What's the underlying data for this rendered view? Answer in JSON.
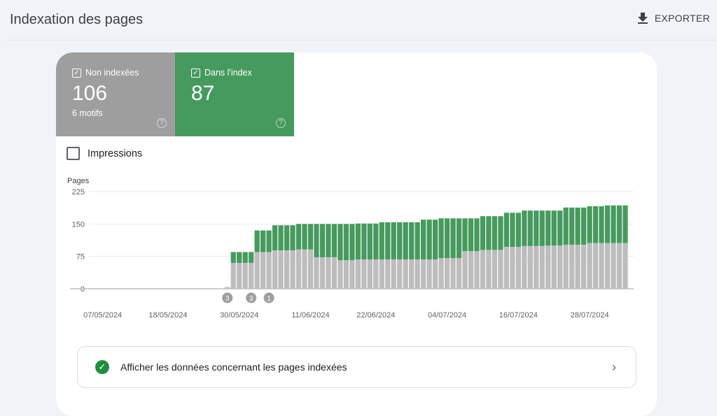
{
  "header": {
    "title": "Indexation des pages",
    "export_label": "EXPORTER",
    "export_icon": "download-icon"
  },
  "tiles": [
    {
      "label": "Non indexées",
      "value": "106",
      "sub": "6 motifs",
      "checked": true,
      "color": "#9e9e9e"
    },
    {
      "label": "Dans l'index",
      "value": "87",
      "checked": true,
      "color": "#469a5e"
    }
  ],
  "impressions": {
    "label": "Impressions",
    "checked": false
  },
  "chart_data": {
    "type": "bar",
    "stacked": true,
    "ylabel": "Pages",
    "ylim": [
      0,
      225
    ],
    "yticks": [
      "0",
      "75",
      "150",
      "225"
    ],
    "xlim": [
      "02/05/2024",
      "03/08/2024"
    ],
    "xticks": [
      "07/05/2024",
      "18/05/2024",
      "30/05/2024",
      "11/06/2024",
      "22/06/2024",
      "04/07/2024",
      "16/07/2024",
      "28/07/2024"
    ],
    "grid": true,
    "note": "",
    "x": [
      "28/05/2024",
      "29/05/2024",
      "30/05/2024",
      "31/05/2024",
      "01/06/2024",
      "02/06/2024",
      "03/06/2024",
      "04/06/2024",
      "05/06/2024",
      "06/06/2024",
      "07/06/2024",
      "08/06/2024",
      "09/06/2024",
      "10/06/2024",
      "11/06/2024",
      "12/06/2024",
      "13/06/2024",
      "14/06/2024",
      "15/06/2024",
      "16/06/2024",
      "17/06/2024",
      "18/06/2024",
      "19/06/2024",
      "20/06/2024",
      "21/06/2024",
      "22/06/2024",
      "23/06/2024",
      "24/06/2024",
      "25/06/2024",
      "26/06/2024",
      "27/06/2024",
      "28/06/2024",
      "29/06/2024",
      "30/06/2024",
      "01/07/2024",
      "02/07/2024",
      "03/07/2024",
      "04/07/2024",
      "05/07/2024",
      "06/07/2024",
      "07/07/2024",
      "08/07/2024",
      "09/07/2024",
      "10/07/2024",
      "11/07/2024",
      "12/07/2024",
      "13/07/2024",
      "14/07/2024",
      "15/07/2024",
      "16/07/2024",
      "17/07/2024",
      "18/07/2024",
      "19/07/2024",
      "20/07/2024",
      "21/07/2024",
      "22/07/2024",
      "23/07/2024",
      "24/07/2024",
      "25/07/2024",
      "26/07/2024",
      "27/07/2024",
      "28/07/2024",
      "29/07/2024",
      "30/07/2024",
      "31/07/2024",
      "01/08/2024",
      "02/08/2024",
      "03/08/2024"
    ],
    "series": [
      {
        "name": "Non indexées",
        "color": "#bdbdbd",
        "values": [
          4,
          60,
          60,
          60,
          60,
          85,
          85,
          85,
          89,
          89,
          89,
          89,
          91,
          91,
          91,
          73,
          73,
          73,
          73,
          66,
          66,
          66,
          68,
          68,
          68,
          68,
          68,
          68,
          68,
          68,
          68,
          68,
          68,
          68,
          68,
          68,
          71,
          71,
          71,
          71,
          87,
          87,
          87,
          90,
          90,
          90,
          90,
          97,
          97,
          97,
          99,
          99,
          99,
          99,
          100,
          100,
          100,
          102,
          102,
          102,
          102,
          106,
          106,
          106,
          106,
          106,
          106,
          106
        ]
      },
      {
        "name": "Dans l'index",
        "color": "#469a5e",
        "values": [
          0,
          25,
          25,
          25,
          25,
          50,
          50,
          50,
          58,
          58,
          58,
          58,
          59,
          59,
          59,
          77,
          77,
          77,
          77,
          84,
          84,
          84,
          83,
          83,
          83,
          83,
          86,
          86,
          86,
          86,
          86,
          86,
          86,
          92,
          92,
          92,
          92,
          92,
          92,
          92,
          76,
          76,
          76,
          78,
          78,
          78,
          78,
          79,
          79,
          79,
          82,
          82,
          82,
          82,
          81,
          81,
          81,
          86,
          86,
          86,
          86,
          85,
          85,
          85,
          87,
          87,
          87,
          87
        ]
      }
    ],
    "annotations": [
      {
        "date": "28/05/2024",
        "label": "3"
      },
      {
        "date": "01/06/2024",
        "label": "3"
      },
      {
        "date": "04/06/2024",
        "label": "1"
      }
    ]
  },
  "footer_link": {
    "label": "Afficher les données concernant les pages indexées",
    "icon": "check-circle-icon",
    "chevron": "chevron-right-icon"
  }
}
